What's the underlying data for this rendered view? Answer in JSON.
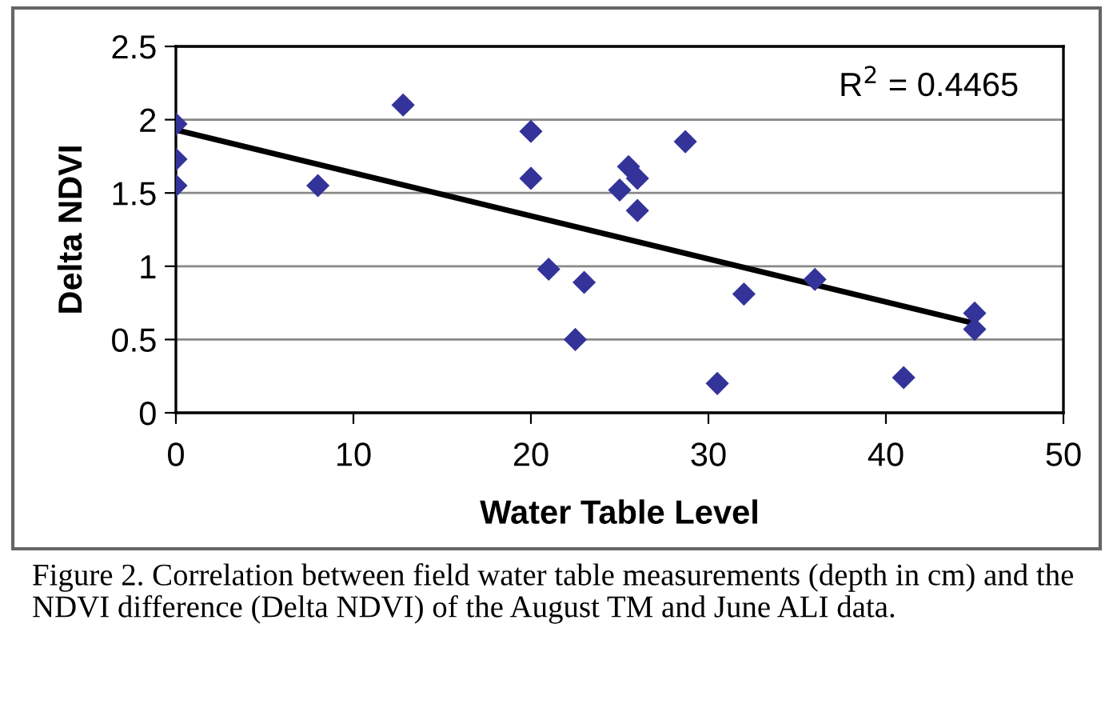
{
  "chart_data": {
    "type": "scatter",
    "xlabel": "Water Table Level",
    "ylabel": "Delta NDVI",
    "xlim": [
      0,
      50
    ],
    "xticks": [
      0,
      10,
      20,
      30,
      40,
      50
    ],
    "ylim": [
      0,
      2.5
    ],
    "yticks": [
      0,
      0.5,
      1,
      1.5,
      2,
      2.5
    ],
    "grid": "y",
    "series": [
      {
        "marker": "diamond",
        "color": "#333399",
        "x": [
          0,
          0,
          0,
          8,
          12.8,
          20,
          20,
          21,
          22.5,
          23,
          25,
          25.5,
          26,
          26,
          28.7,
          30.5,
          32,
          36,
          41,
          45,
          45
        ],
        "values": [
          1.97,
          1.73,
          1.55,
          1.55,
          2.1,
          1.92,
          1.6,
          0.98,
          0.5,
          0.89,
          1.52,
          1.68,
          1.6,
          1.38,
          1.85,
          0.2,
          0.81,
          0.91,
          0.24,
          0.68,
          0.57
        ]
      },
      {
        "type": "line",
        "color": "#000000",
        "x": [
          0,
          45
        ],
        "values": [
          1.93,
          0.61
        ]
      }
    ],
    "annotations": [
      "R$^{2}$ = 0.4465",
      "Figure 2. Correlation between field water table measurements (depth in cm) and the NDVI difference (Delta NDVI) of the August TM and June ALI data."
    ]
  }
}
